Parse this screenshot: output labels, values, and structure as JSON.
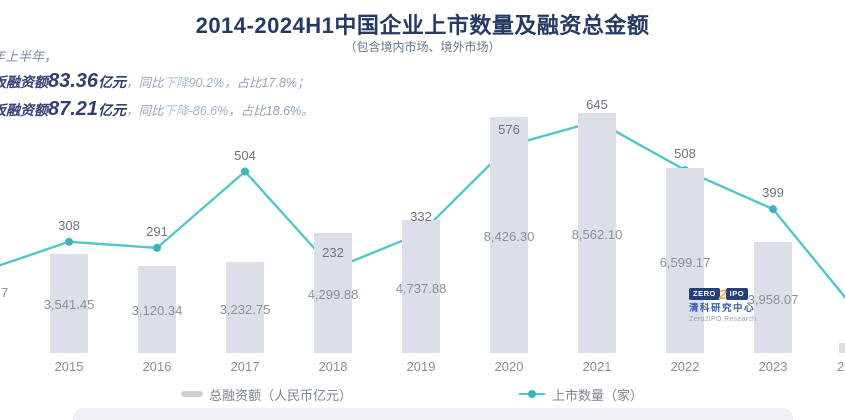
{
  "header": {
    "title": "2014-2024H1中国企业上市数量及融资总金额",
    "subtitle": "（包含境内市场、境外市场）"
  },
  "annotations": {
    "line1": "年上半年，",
    "line2": {
      "prefix": "板融资额",
      "amount": "83.36",
      "unit": "亿元",
      "comma": "，",
      "yoy": "同比",
      "drop": "下降",
      "pct": "90.2%",
      "comma2": "，",
      "share": "占比17.8%；"
    },
    "line3": {
      "prefix": "板融资额",
      "amount": "87.21",
      "unit": "亿元",
      "comma": "，",
      "yoy": "同比",
      "drop": "下降",
      "pct": "-86.6%",
      "comma2": "，",
      "share": "占比18.6%。"
    }
  },
  "chart_data": {
    "type": "bar+line",
    "categories": [
      "2015",
      "2016",
      "2017",
      "2018",
      "2019",
      "2020",
      "2021",
      "2022",
      "2023"
    ],
    "series": [
      {
        "name": "总融资额（人民币亿元）",
        "type": "bar",
        "values": [
          3541.45,
          3120.34,
          3232.75,
          4299.88,
          4737.88,
          8426.3,
          8562.1,
          6599.17,
          3958.07
        ],
        "labels": [
          "3,541.45",
          "3,120.34",
          "3,232.75",
          "4,299.88",
          "4,737.88",
          "8,426.30",
          "8,562.10",
          "6,599.17",
          "3,958.07"
        ]
      },
      {
        "name": "上市数量（家）",
        "type": "line",
        "values": [
          308,
          291,
          504,
          232,
          332,
          576,
          645,
          508,
          399
        ],
        "labels": [
          "308",
          "291",
          "504",
          "232",
          "332",
          "576",
          "645",
          "508",
          "399"
        ]
      }
    ],
    "clipped_edges": {
      "left_bar_label_fragment": "7",
      "right_year_fragment": "2",
      "line_continues_left": true,
      "line_continues_right": true,
      "right_partial_bar": true
    },
    "colors": {
      "bar": "#dcdfe8",
      "line": "#55c4cb",
      "line_dot": "#3db4bd",
      "bar_label": "#8a909b",
      "line_label": "#6e7580",
      "axis_label": "#8a909b",
      "title": "#263a66"
    },
    "legend_position": "bottom",
    "grid": false
  },
  "legend": {
    "bar": "总融资额（人民币亿元）",
    "line": "上市数量（家）"
  },
  "logo": {
    "zero": "ZERO",
    "two": "2",
    "ipo": "IPO",
    "name": "清科研究中心",
    "subname": "Zero2IPO Research"
  }
}
